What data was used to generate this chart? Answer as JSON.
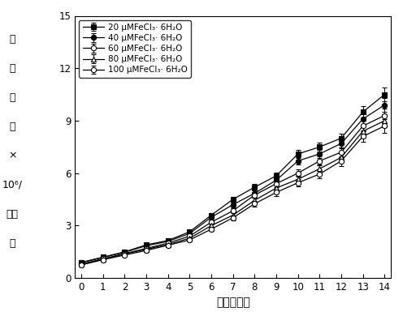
{
  "title": "",
  "xlabel": "时间（天）",
  "xlim": [
    -0.3,
    14.3
  ],
  "ylim": [
    0,
    15
  ],
  "yticks": [
    0,
    3,
    6,
    9,
    12,
    15
  ],
  "xticks": [
    0,
    1,
    2,
    3,
    4,
    5,
    6,
    7,
    8,
    9,
    10,
    11,
    12,
    13,
    14
  ],
  "series": [
    {
      "label": "20 μMFeCl₃· 6H₂O",
      "marker": "s",
      "fillstyle": "full",
      "color": "black",
      "linestyle": "-",
      "x": [
        0,
        1,
        2,
        3,
        4,
        5,
        6,
        7,
        8,
        9,
        10,
        11,
        12,
        13,
        14
      ],
      "y": [
        0.9,
        1.2,
        1.5,
        1.9,
        2.15,
        2.65,
        3.6,
        4.5,
        5.2,
        5.85,
        7.1,
        7.5,
        8.0,
        9.5,
        10.5
      ],
      "yerr": [
        0.04,
        0.04,
        0.05,
        0.07,
        0.07,
        0.1,
        0.12,
        0.14,
        0.17,
        0.2,
        0.22,
        0.25,
        0.28,
        0.32,
        0.38
      ]
    },
    {
      "label": "40 μMFeCl₃· 6H₂O",
      "marker": "o",
      "fillstyle": "full",
      "color": "black",
      "linestyle": "-",
      "x": [
        0,
        1,
        2,
        3,
        4,
        5,
        6,
        7,
        8,
        9,
        10,
        11,
        12,
        13,
        14
      ],
      "y": [
        0.88,
        1.18,
        1.48,
        1.85,
        2.1,
        2.55,
        3.48,
        4.2,
        4.85,
        5.6,
        6.7,
        7.1,
        7.7,
        9.1,
        9.9
      ],
      "yerr": [
        0.04,
        0.04,
        0.05,
        0.07,
        0.07,
        0.1,
        0.12,
        0.14,
        0.17,
        0.2,
        0.22,
        0.25,
        0.28,
        0.32,
        0.38
      ]
    },
    {
      "label": "60 μMFeCl₃· 6H₂O",
      "marker": "o",
      "fillstyle": "none",
      "color": "black",
      "linestyle": "-",
      "x": [
        0,
        1,
        2,
        3,
        4,
        5,
        6,
        7,
        8,
        9,
        10,
        11,
        12,
        13,
        14
      ],
      "y": [
        0.8,
        1.1,
        1.4,
        1.7,
        2.0,
        2.4,
        3.2,
        3.85,
        4.75,
        5.4,
        6.0,
        6.7,
        7.2,
        8.7,
        9.3
      ],
      "yerr": [
        0.04,
        0.04,
        0.05,
        0.07,
        0.07,
        0.1,
        0.12,
        0.14,
        0.17,
        0.2,
        0.22,
        0.25,
        0.28,
        0.32,
        0.38
      ]
    },
    {
      "label": "80 μMFeCl₃· 6H₂O",
      "marker": "^",
      "fillstyle": "none",
      "color": "black",
      "linestyle": "-",
      "x": [
        0,
        1,
        2,
        3,
        4,
        5,
        6,
        7,
        8,
        9,
        10,
        11,
        12,
        13,
        14
      ],
      "y": [
        0.78,
        1.08,
        1.38,
        1.65,
        1.92,
        2.28,
        3.0,
        3.6,
        4.45,
        5.15,
        5.65,
        6.25,
        6.9,
        8.4,
        9.0
      ],
      "yerr": [
        0.04,
        0.04,
        0.05,
        0.07,
        0.07,
        0.1,
        0.12,
        0.14,
        0.17,
        0.2,
        0.22,
        0.25,
        0.28,
        0.32,
        0.38
      ]
    },
    {
      "label": "100 μMFeCl₃· 6H₂O",
      "marker": "o",
      "fillstyle": "none",
      "color": "black",
      "linestyle": "-",
      "x": [
        0,
        1,
        2,
        3,
        4,
        5,
        6,
        7,
        8,
        9,
        10,
        11,
        12,
        13,
        14
      ],
      "y": [
        0.75,
        1.05,
        1.32,
        1.58,
        1.88,
        2.18,
        2.8,
        3.45,
        4.25,
        4.9,
        5.45,
        5.95,
        6.7,
        8.1,
        8.7
      ],
      "yerr": [
        0.04,
        0.04,
        0.05,
        0.07,
        0.07,
        0.1,
        0.12,
        0.14,
        0.17,
        0.2,
        0.22,
        0.25,
        0.28,
        0.32,
        0.38
      ]
    }
  ],
  "ylabel_chars": [
    "细",
    "胞",
    "数",
    "（",
    "×",
    "10⁶/",
    "毫升",
    "）"
  ],
  "background_color": "#ffffff"
}
